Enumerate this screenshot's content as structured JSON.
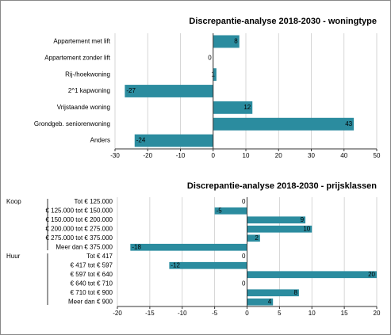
{
  "chart_data": [
    {
      "type": "bar",
      "orientation": "horizontal",
      "title": "Discrepantie-analyse 2018-2030 - woningtype",
      "categories": [
        "Appartement met lift",
        "Appartement zonder lift",
        "Rij-/hoekwoning",
        "2^1 kapwoning",
        "Vrijstaande woning",
        "Grondgeb. seniorenwoning",
        "Anders"
      ],
      "values": [
        8,
        0,
        1,
        -27,
        12,
        43,
        -24
      ],
      "color": "#2b8c9f",
      "xlim": [
        -30,
        50
      ],
      "xticks": [
        -30,
        -20,
        -10,
        0,
        10,
        20,
        30,
        40,
        50
      ],
      "grid": true
    },
    {
      "type": "bar",
      "orientation": "horizontal",
      "title": "Discrepantie-analyse 2018-2030 - prijsklassen",
      "groups": [
        {
          "name": "Koop",
          "categories": [
            "Tot € 125.000",
            "€ 125.000 tot € 150.000",
            "€ 150.000 tot € 200.000",
            "€ 200.000 tot € 275.000",
            "€ 275.000 tot € 375.000",
            "Meer dan € 375.000"
          ],
          "values": [
            0,
            -5,
            9,
            10,
            2,
            -18
          ]
        },
        {
          "name": "Huur",
          "categories": [
            "Tot € 417",
            "€ 417 tot € 597",
            "€ 597 tot € 640",
            "€ 640 tot € 710",
            "€ 710 tot € 900",
            "Meer dan € 900"
          ],
          "values": [
            0,
            -12,
            20,
            0,
            8,
            4
          ]
        }
      ],
      "color": "#2b8c9f",
      "xlim": [
        -20,
        20
      ],
      "xticks": [
        -20,
        -15,
        -10,
        -5,
        0,
        5,
        10,
        15,
        20
      ],
      "grid": true
    }
  ]
}
